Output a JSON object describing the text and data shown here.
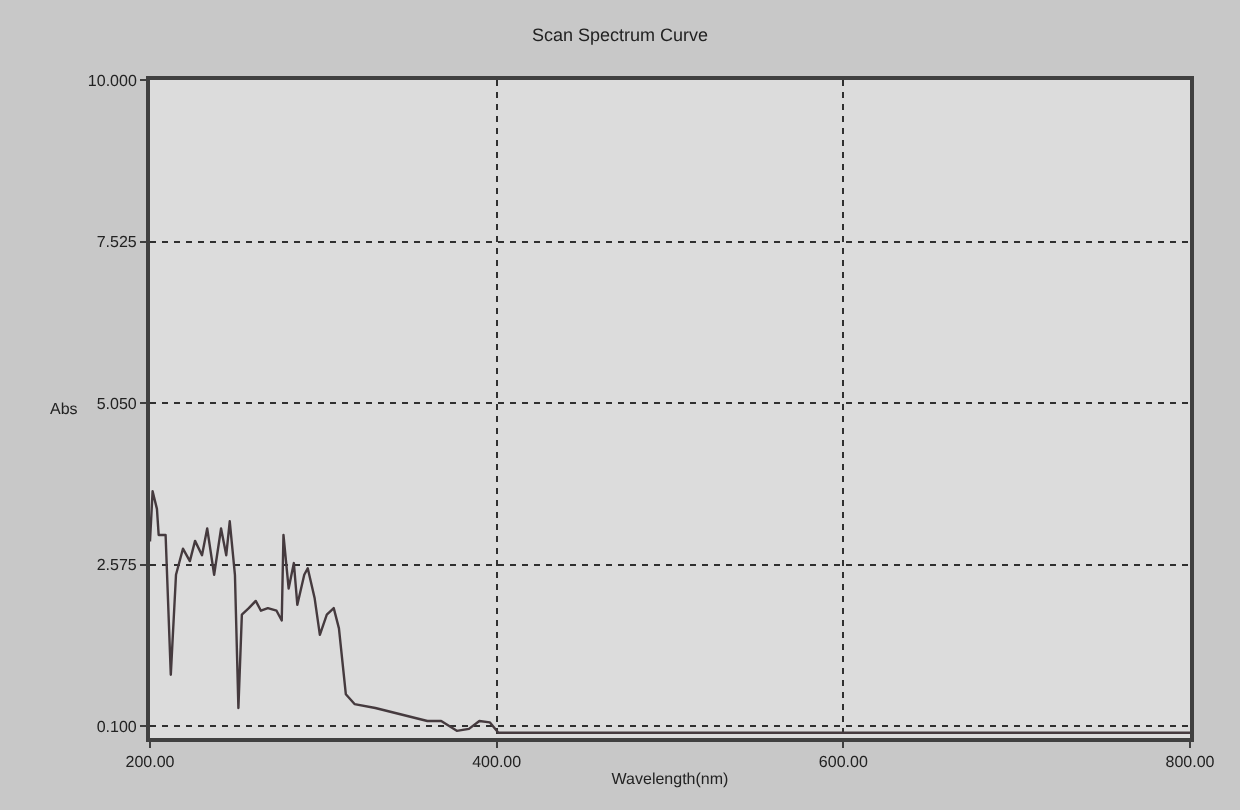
{
  "chart_data": {
    "type": "line",
    "title": "Scan Spectrum Curve",
    "xlabel": "Wavelength(nm)",
    "ylabel": "Abs",
    "x": [
      200,
      201.5,
      204,
      205,
      209,
      212,
      215,
      219,
      223,
      226,
      230,
      233,
      237,
      241,
      244,
      246,
      249,
      251,
      253,
      257,
      261,
      264,
      268,
      273,
      276,
      277,
      280,
      283,
      285,
      289,
      291,
      295,
      298,
      302,
      306,
      309,
      313,
      318,
      330,
      345,
      360,
      368,
      377,
      384,
      390,
      396,
      401,
      450,
      500,
      600,
      700,
      800
    ],
    "series": [
      {
        "color": "#453a3e",
        "values": [
          2.93,
          3.7,
          3.43,
          3.03,
          3.03,
          0.89,
          2.42,
          2.82,
          2.63,
          2.94,
          2.72,
          3.13,
          2.42,
          3.13,
          2.72,
          3.24,
          2.42,
          0.38,
          1.81,
          1.91,
          2.02,
          1.87,
          1.91,
          1.87,
          1.72,
          3.03,
          2.21,
          2.6,
          1.96,
          2.42,
          2.52,
          2.06,
          1.5,
          1.81,
          1.91,
          1.6,
          0.59,
          0.44,
          0.38,
          0.28,
          0.18,
          0.18,
          0.03,
          0.06,
          0.18,
          0.16,
          0.0,
          0.0,
          0.0,
          0.0,
          0.0,
          0.0
        ]
      }
    ],
    "xlim": [
      200,
      800
    ],
    "xticks": [
      {
        "value": 200,
        "label": "200.00"
      },
      {
        "value": 400,
        "label": "400.00"
      },
      {
        "value": 600,
        "label": "600.00"
      },
      {
        "value": 800,
        "label": "800.00"
      }
    ],
    "ylim": [
      -0.08,
      10
    ],
    "yticks": [
      {
        "value": 0.1,
        "label": "0.100"
      },
      {
        "value": 2.575,
        "label": "2.575"
      },
      {
        "value": 5.05,
        "label": "5.050"
      },
      {
        "value": 7.525,
        "label": "7.525"
      },
      {
        "value": 10,
        "label": "10.000"
      }
    ],
    "grid": true,
    "line_style": "solid",
    "marker": "none"
  }
}
